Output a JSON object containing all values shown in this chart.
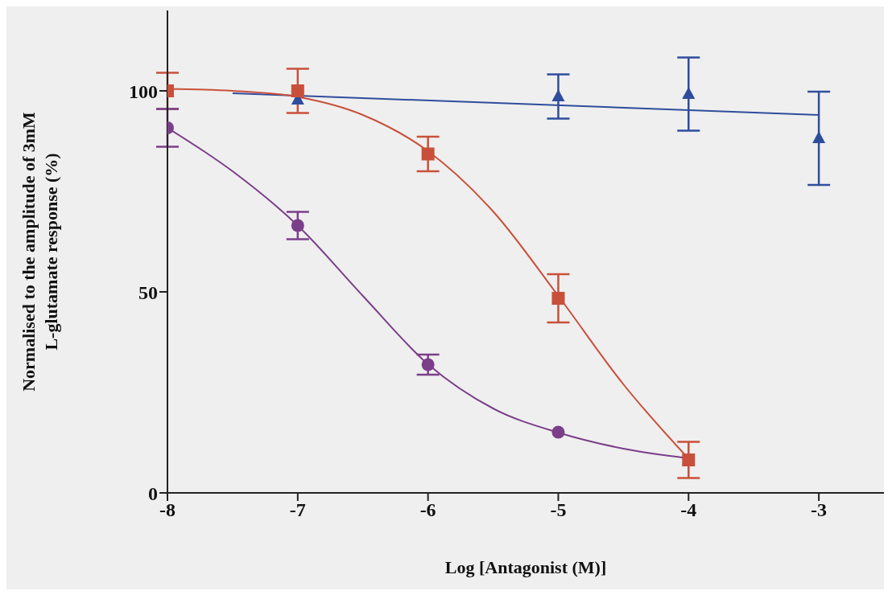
{
  "chart_data": {
    "type": "scatter",
    "xlabel": "Log [Antagonist (M)]",
    "ylabel": "Normalised to the amplitude of 3mM\nL-glutamate response (%)",
    "xlim": [
      -8,
      -2.5
    ],
    "xticks": [
      -8,
      -7,
      -6,
      -5,
      -4,
      -3
    ],
    "ylim": [
      0,
      120
    ],
    "yticks": [
      0,
      50,
      100
    ],
    "grid": false,
    "series": [
      {
        "type": "line",
        "color": "#2e4d9c",
        "marker": "none",
        "x": [
          -7.5,
          -3
        ],
        "values": [
          99.4,
          94
        ]
      },
      {
        "type": "line",
        "color": "#c8503a",
        "marker": "none",
        "x": [
          -8,
          -7.5,
          -7,
          -6.5,
          -6,
          -5.5,
          -5,
          -4.5,
          -4
        ],
        "values": [
          100.5,
          100,
          98.5,
          94,
          85,
          70,
          49,
          27,
          8.5
        ]
      },
      {
        "type": "line",
        "color": "#7b3f8a",
        "marker": "none",
        "x": [
          -8,
          -7.5,
          -7,
          -6.5,
          -6,
          -5.5,
          -5,
          -4.5,
          -4
        ],
        "values": [
          90.8,
          80,
          66.5,
          49,
          32,
          21,
          15,
          11,
          8.6
        ]
      },
      {
        "color": "#2e4d9c",
        "marker": "triangle",
        "x": [
          -7,
          -5,
          -4,
          -3
        ],
        "values": [
          97.8,
          98.6,
          99.2,
          88.2
        ],
        "errors": [
          null,
          5.5,
          9.1,
          11.6
        ]
      },
      {
        "color": "#c8503a",
        "marker": "square",
        "x": [
          -8,
          -7,
          -6,
          -5,
          -4
        ],
        "values": [
          100,
          100,
          84.3,
          48.4,
          8.2
        ],
        "errors": [
          4.5,
          5.5,
          4.3,
          6,
          4.5
        ]
      },
      {
        "color": "#7b3f8a",
        "marker": "circle",
        "x": [
          -8,
          -7,
          -6,
          -5
        ],
        "values": [
          90.8,
          66.5,
          31.9,
          15.1
        ],
        "errors": [
          4.7,
          3.4,
          2.5,
          null
        ]
      }
    ]
  }
}
